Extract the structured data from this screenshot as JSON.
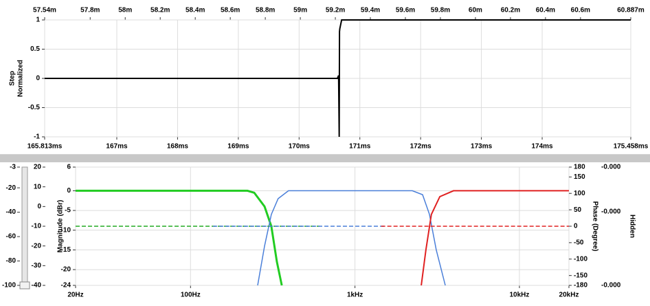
{
  "chart_data": [
    {
      "type": "line",
      "ylabel_lines": [
        "Step",
        "Normalized"
      ],
      "xlim": [
        165.813,
        175.458
      ],
      "xticks": [
        {
          "value": 165.813,
          "label": "165.813ms"
        },
        {
          "value": 167,
          "label": "167ms"
        },
        {
          "value": 168,
          "label": "168ms"
        },
        {
          "value": 169,
          "label": "169ms"
        },
        {
          "value": 170,
          "label": "170ms"
        },
        {
          "value": 171,
          "label": "171ms"
        },
        {
          "value": 172,
          "label": "172ms"
        },
        {
          "value": 173,
          "label": "173ms"
        },
        {
          "value": 174,
          "label": "174ms"
        },
        {
          "value": 175.458,
          "label": "175.458ms"
        }
      ],
      "x2lim": [
        57.54,
        60.887
      ],
      "x2ticks": [
        {
          "value": 57.54,
          "label": "57.54m"
        },
        {
          "value": 57.8,
          "label": "57.8m"
        },
        {
          "value": 58,
          "label": "58m"
        },
        {
          "value": 58.2,
          "label": "58.2m"
        },
        {
          "value": 58.4,
          "label": "58.4m"
        },
        {
          "value": 58.6,
          "label": "58.6m"
        },
        {
          "value": 58.8,
          "label": "58.8m"
        },
        {
          "value": 59,
          "label": "59m"
        },
        {
          "value": 59.2,
          "label": "59.2m"
        },
        {
          "value": 59.4,
          "label": "59.4m"
        },
        {
          "value": 59.6,
          "label": "59.6m"
        },
        {
          "value": 59.8,
          "label": "59.8m"
        },
        {
          "value": 60,
          "label": "60m"
        },
        {
          "value": 60.2,
          "label": "60.2m"
        },
        {
          "value": 60.4,
          "label": "60.4m"
        },
        {
          "value": 60.6,
          "label": "60.6m"
        },
        {
          "value": 60.887,
          "label": "60.887m"
        }
      ],
      "ylim": [
        -1,
        1
      ],
      "yticks": [
        -1,
        -0.5,
        0,
        0.5,
        1
      ],
      "grid": true,
      "series": [
        {
          "color": "#000000",
          "x": [
            165.813,
            170.63,
            170.65,
            170.66,
            170.665,
            170.67,
            170.7,
            175.458
          ],
          "values": [
            0,
            0,
            0.05,
            -1,
            0.8,
            0.85,
            1,
            1
          ]
        }
      ]
    },
    {
      "type": "line",
      "xlog": true,
      "ylabel": "Magnitude (dBr)",
      "y2label": "Phase (Degree)",
      "xlim": [
        20,
        20000
      ],
      "xticks": [
        {
          "value": 20,
          "label": "20Hz"
        },
        {
          "value": 100,
          "label": "100Hz"
        },
        {
          "value": 1000,
          "label": "1kHz"
        },
        {
          "value": 10000,
          "label": "10kHz"
        },
        {
          "value": 20000,
          "label": "20kHz"
        }
      ],
      "ylim": [
        -24,
        6
      ],
      "yticks": [
        6,
        0,
        -5,
        -10,
        -15,
        -20,
        -24
      ],
      "y2lim": [
        -180,
        180
      ],
      "y2ticks": [
        180,
        150,
        100,
        50,
        0,
        -50,
        -100,
        -150,
        -180
      ],
      "y3lim": [
        -40,
        20
      ],
      "y3ticks": [
        20,
        10,
        0,
        -10,
        -20,
        -30,
        -40
      ],
      "y4lim": [
        -100,
        -3
      ],
      "y4ticks": [
        -3,
        -20,
        -40,
        -60,
        -80,
        -100
      ],
      "readouts": [
        "-0.000",
        "-0.000",
        "-0.000"
      ],
      "hidden_label": "Hidden",
      "grid": true,
      "series": [
        {
          "color": "#22cc22",
          "width": 3,
          "x": [
            20,
            222,
            244,
            282,
            310,
            335,
            359
          ],
          "values": [
            0,
            0,
            -0.5,
            -4,
            -9,
            -18,
            -24
          ]
        },
        {
          "color": "#4a7fd9",
          "width": 1.5,
          "x": [
            256,
            282,
            310,
            341,
            394,
            2233,
            2577,
            2838,
            3121,
            3542
          ],
          "values": [
            -24,
            -14,
            -6,
            -2,
            0,
            0,
            -1,
            -6,
            -15,
            -24
          ]
        },
        {
          "color": "#e02020",
          "width": 2,
          "x": [
            2530,
            2700,
            2915,
            3280,
            3973,
            20000
          ],
          "values": [
            -24,
            -15,
            -6,
            -1.5,
            0,
            0
          ]
        },
        {
          "color": "#22aa22",
          "width": 1.5,
          "dashed": true,
          "axis": "y2",
          "x": [
            20,
            609
          ],
          "values": [
            0,
            0
          ]
        },
        {
          "color": "#4a7fd9",
          "width": 1.5,
          "dashed": true,
          "axis": "y2",
          "x": [
            137,
            1518
          ],
          "values": [
            0,
            0
          ]
        },
        {
          "color": "#e02020",
          "width": 1.5,
          "dashed": true,
          "axis": "y2",
          "x": [
            1442,
            20000
          ],
          "values": [
            0,
            0
          ]
        }
      ]
    }
  ]
}
